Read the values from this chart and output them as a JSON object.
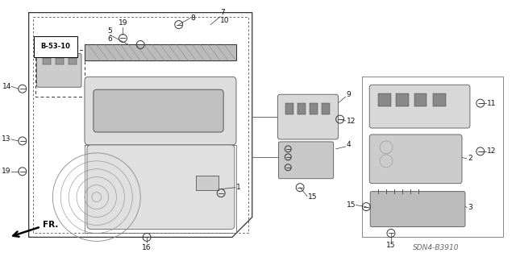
{
  "bg_color": "#ffffff",
  "part_code": "SDN4-B3910",
  "fig_width": 6.4,
  "fig_height": 3.19,
  "line_color": "#333333",
  "gray1": "#888888",
  "gray2": "#aaaaaa",
  "gray3": "#cccccc"
}
